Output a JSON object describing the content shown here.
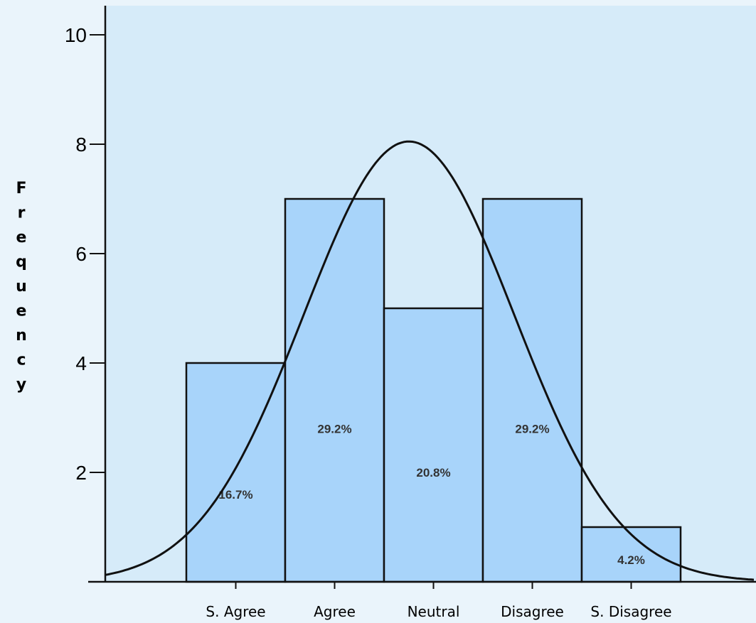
{
  "chart_data": {
    "type": "bar",
    "categories": [
      "S. Agree",
      "Agree",
      "Neutral",
      "Disagree",
      "S. Disagree"
    ],
    "values": [
      4,
      7,
      5,
      7,
      1
    ],
    "data_labels": [
      "16.7%",
      "29.2%",
      "20.8%",
      "29.2%",
      "4.2%"
    ],
    "ylabel": "Frequency",
    "xlabel": "",
    "title": "",
    "ylim": [
      0,
      10
    ],
    "yticks": [
      2,
      4,
      6,
      8,
      10
    ],
    "normal_curve": true,
    "grid": false,
    "colors": {
      "bar_fill": "#a8d4fa",
      "bar_stroke": "#111111",
      "plot_background": "#d6ebf9",
      "page_background": "#eaf4fb",
      "curve": "#111111"
    }
  }
}
